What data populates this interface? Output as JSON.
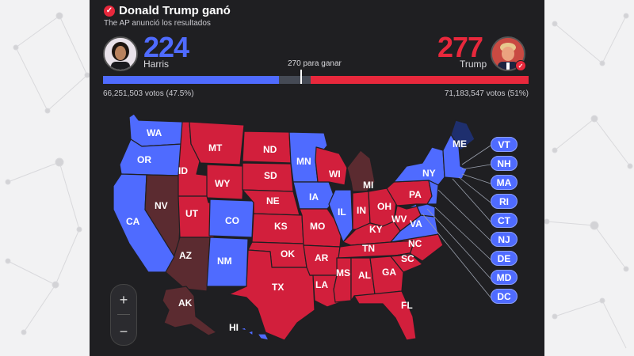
{
  "header": {
    "headline": "Donald Trump ganó",
    "subtitle": "The AP anunció los resultados"
  },
  "candidates": {
    "harris": {
      "name": "Harris",
      "electoral_votes": "224",
      "popular_votes": "66,251,503 votos (47.5%)",
      "color": "#4f6bff"
    },
    "trump": {
      "name": "Trump",
      "electoral_votes": "277",
      "popular_votes": "71,183,547 votos (51%)",
      "color": "#e8283c"
    }
  },
  "threshold": {
    "label": "270 para ganar"
  },
  "bar": {
    "harris_fraction": 0.414,
    "trump_fraction": 0.512
  },
  "colors": {
    "dem": "#4f6bff",
    "rep": "#d21f3c",
    "rep_flipped": "#5b2b30",
    "dem_dark": "#1e2f6e",
    "uncalled": "#454a55"
  },
  "states": {
    "WA": "WA",
    "OR": "OR",
    "CA": "CA",
    "NV": "NV",
    "ID": "ID",
    "MT": "MT",
    "WY": "WY",
    "UT": "UT",
    "CO": "CO",
    "AZ": "AZ",
    "NM": "NM",
    "ND": "ND",
    "SD": "SD",
    "NE": "NE",
    "KS": "KS",
    "OK": "OK",
    "TX": "TX",
    "MN": "MN",
    "IA": "IA",
    "MO": "MO",
    "AR": "AR",
    "LA": "LA",
    "WI": "WI",
    "IL": "IL",
    "MI": "MI",
    "IN": "IN",
    "OH": "OH",
    "KY": "KY",
    "TN": "TN",
    "MS": "MS",
    "AL": "AL",
    "GA": "GA",
    "FL": "FL",
    "SC": "SC",
    "NC": "NC",
    "VA": "VA",
    "WV": "WV",
    "PA": "PA",
    "NY": "NY",
    "ME": "ME",
    "AK": "AK",
    "HI": "HI"
  },
  "small_states": [
    "VT",
    "NH",
    "MA",
    "RI",
    "CT",
    "NJ",
    "DE",
    "MD",
    "DC"
  ],
  "zoom": {
    "in": "+",
    "out": "−"
  }
}
